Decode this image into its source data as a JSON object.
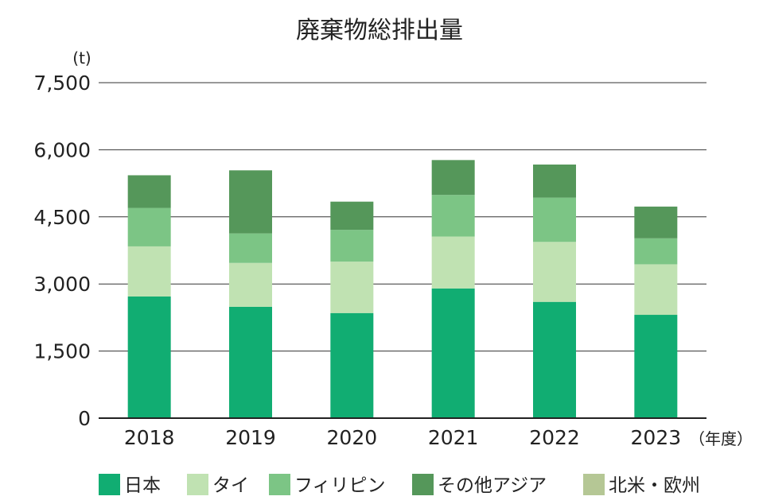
{
  "chart_data": {
    "type": "bar",
    "stacked": true,
    "title": "廃棄物総排出量",
    "y_unit": "(t)",
    "x_unit": "（年度）",
    "categories": [
      "2018",
      "2019",
      "2020",
      "2021",
      "2022",
      "2023"
    ],
    "ylim": [
      0,
      7500
    ],
    "yticks": [
      0,
      1500,
      3000,
      4500,
      6000,
      7500
    ],
    "ytick_labels": [
      "0",
      "1,500",
      "3,000",
      "4,500",
      "6,000",
      "7,500"
    ],
    "grid": true,
    "legend_position": "bottom",
    "series": [
      {
        "name": "日本",
        "color": "#11ad72",
        "values": [
          2720,
          2490,
          2350,
          2900,
          2600,
          2310
        ]
      },
      {
        "name": "タイ",
        "color": "#c0e2b2",
        "values": [
          1120,
          980,
          1150,
          1160,
          1340,
          1130
        ]
      },
      {
        "name": "フィリピン",
        "color": "#7cc585",
        "values": [
          860,
          660,
          710,
          930,
          990,
          580
        ]
      },
      {
        "name": "その他アジア",
        "color": "#55975a",
        "values": [
          730,
          1410,
          630,
          780,
          740,
          710
        ]
      },
      {
        "name": "北米・欧州",
        "color": "#b5c795",
        "values": [
          0,
          0,
          0,
          0,
          0,
          0
        ]
      }
    ]
  }
}
